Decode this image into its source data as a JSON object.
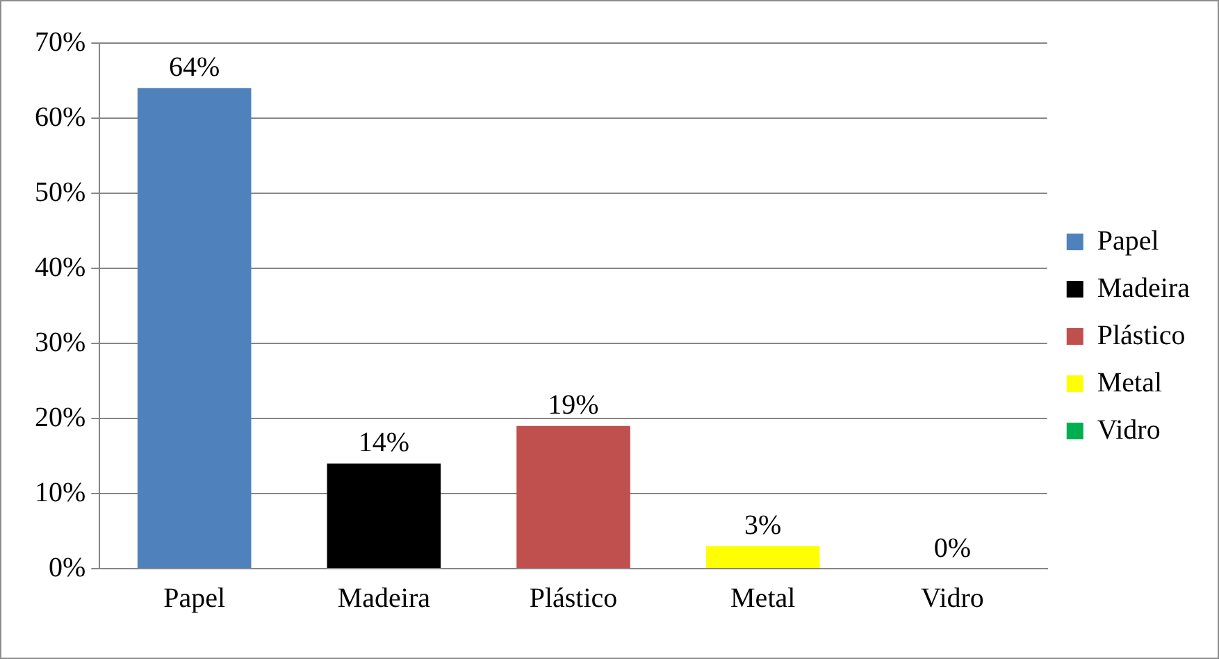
{
  "chart_data": {
    "type": "bar",
    "categories": [
      "Papel",
      "Madeira",
      "Plástico",
      "Metal",
      "Vidro"
    ],
    "series": [
      {
        "name": "Papel",
        "color": "#4f81bd",
        "values": [
          64,
          null,
          null,
          null,
          null
        ],
        "value_labels": [
          "64%",
          null,
          null,
          null,
          null
        ]
      },
      {
        "name": "Madeira",
        "color": "#000000",
        "values": [
          null,
          14,
          null,
          null,
          null
        ],
        "value_labels": [
          null,
          "14%",
          null,
          null,
          null
        ]
      },
      {
        "name": "Plástico",
        "color": "#c0504d",
        "values": [
          null,
          null,
          19,
          null,
          null
        ],
        "value_labels": [
          null,
          null,
          "19%",
          null,
          null
        ]
      },
      {
        "name": "Metal",
        "color": "#ffff00",
        "values": [
          null,
          null,
          null,
          3,
          null
        ],
        "value_labels": [
          null,
          null,
          null,
          "3%",
          null
        ]
      },
      {
        "name": "Vidro",
        "color": "#00b050",
        "values": [
          null,
          null,
          null,
          null,
          0
        ],
        "value_labels": [
          null,
          null,
          null,
          null,
          "0%"
        ]
      }
    ],
    "ylim": [
      0,
      70
    ],
    "yticks": [
      {
        "value": 0,
        "label": "0%"
      },
      {
        "value": 10,
        "label": "10%"
      },
      {
        "value": 20,
        "label": "20%"
      },
      {
        "value": 30,
        "label": "30%"
      },
      {
        "value": 40,
        "label": "40%"
      },
      {
        "value": 50,
        "label": "50%"
      },
      {
        "value": 60,
        "label": "60%"
      },
      {
        "value": 70,
        "label": "70%"
      }
    ],
    "grid": "y",
    "legend": "right"
  }
}
